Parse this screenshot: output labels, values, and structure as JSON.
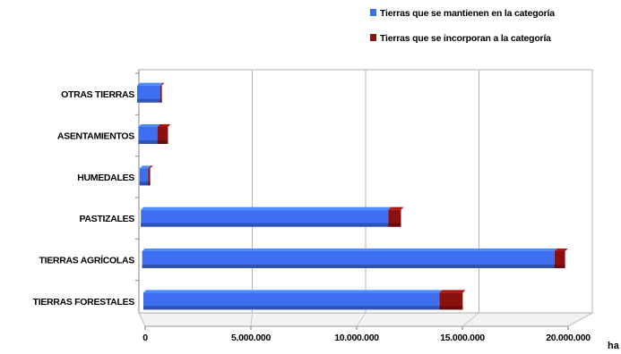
{
  "chart_data": {
    "type": "bar",
    "orientation": "horizontal",
    "stacked": true,
    "categories": [
      "OTRAS TIERRAS",
      "ASENTAMIENTOS",
      "HUMEDALES",
      "PASTIZALES",
      "TIERRAS AGRÍCOLAS",
      "TIERRAS FORESTALES"
    ],
    "series": [
      {
        "name": "Tierras que se mantienen en la categoría",
        "color": "#3d6ff0",
        "values": [
          1100000,
          900000,
          400000,
          11700000,
          19500000,
          14000000
        ]
      },
      {
        "name": "Tierras que se incorporan a la categoría",
        "color": "#8b1010",
        "values": [
          70000,
          500000,
          100000,
          600000,
          500000,
          1100000
        ]
      }
    ],
    "xlim": [
      0,
      20000000
    ],
    "xticks": [
      "0",
      "5.000.000",
      "10.000.000",
      "15.000.000",
      "20.000.000"
    ],
    "xunit": "ha",
    "grid": true,
    "legend_position": "top-right"
  }
}
